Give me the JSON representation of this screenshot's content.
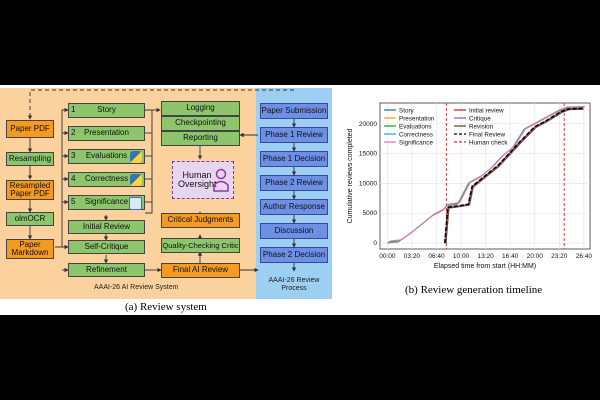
{
  "left_panel": {
    "pipeline": [
      "Paper PDF",
      "Resampling",
      "Resampled Paper PDF",
      "olmOCR",
      "Paper Markdown"
    ],
    "stages": [
      {
        "num": "1",
        "label": "Story"
      },
      {
        "num": "2",
        "label": "Presentation"
      },
      {
        "num": "3",
        "label": "Evaluations"
      },
      {
        "num": "4",
        "label": "Correctness"
      },
      {
        "num": "5",
        "label": "Significance"
      }
    ],
    "initial_review": "Initial Review",
    "self_critique": "Self-Critique",
    "refinement": "Refinement",
    "logging": "Logging",
    "checkpointing": "Checkpointing",
    "reporting": "Reporting",
    "human_oversight": "Human Oversight",
    "critical_judgments": "Critical Judgments",
    "quality_critic": "Quality-Checking Critic",
    "final_ai_review": "Final AI Review",
    "system_label": "AAAI-26 AI Review System",
    "process_title": "AAAI-26 Review Process",
    "process_steps": [
      "Paper Submission",
      "Phase 1 Review",
      "Phase 1 Decision",
      "Phase 2 Review",
      "Author Response",
      "Discussion",
      "Phase 2 Decision"
    ]
  },
  "captions": {
    "left": "(a) Review system",
    "right": "(b) Review generation timeline"
  },
  "chart_data": {
    "type": "line",
    "xlabel": "Elapsed time from start (HH:MM)",
    "ylabel": "Cumulative reviews completed",
    "x_ticks": [
      "00:00",
      "03:20",
      "06:40",
      "10:00",
      "13:20",
      "16:40",
      "20:00",
      "23:20",
      "26:40"
    ],
    "y_ticks": [
      "0",
      "5000",
      "10000",
      "15000",
      "20000"
    ],
    "xlim_hours": [
      -1,
      27.5
    ],
    "ylim": [
      -1000,
      23500
    ],
    "grid": true,
    "legend_placement": "top-left",
    "human_check_hours": [
      8.0,
      24.0
    ],
    "series": [
      {
        "name": "Story",
        "color": "#1f77b4",
        "style": "solid"
      },
      {
        "name": "Presentation",
        "color": "#ff9f1c",
        "style": "solid"
      },
      {
        "name": "Evaluations",
        "color": "#2ca02c",
        "style": "solid"
      },
      {
        "name": "Correctness",
        "color": "#3aa7e6",
        "style": "solid"
      },
      {
        "name": "Significance",
        "color": "#e377c2",
        "style": "solid"
      },
      {
        "name": "Initial review",
        "color": "#d62728",
        "style": "solid"
      },
      {
        "name": "Critique",
        "color": "#9467bd",
        "style": "solid"
      },
      {
        "name": "Revision",
        "color": "#6b4c3b",
        "style": "solid"
      },
      {
        "name": "Final Review",
        "color": "#000000",
        "style": "dashed"
      },
      {
        "name": "Human check",
        "color": "#d62728",
        "style": "dashed"
      }
    ],
    "early_curve": {
      "x": [
        0,
        1.5,
        3,
        4.5,
        6,
        7.5,
        8,
        9.5,
        11,
        12.5,
        14,
        15.5,
        17,
        18.5,
        20,
        21.5,
        23,
        24,
        26.5
      ],
      "y": [
        0,
        200,
        1500,
        3000,
        4500,
        5500,
        6200,
        6500,
        10000,
        11000,
        12500,
        14500,
        16000,
        19000,
        20000,
        21000,
        22000,
        22500,
        22600
      ]
    },
    "late_curve": {
      "x": [
        7.8,
        8.2,
        9.5,
        11,
        11.5,
        13.5,
        15,
        16.5,
        18,
        20,
        21.5,
        23.5,
        24.5,
        26.5
      ],
      "y": [
        0,
        6000,
        6200,
        6500,
        9500,
        11500,
        13000,
        15000,
        17000,
        19500,
        20500,
        22000,
        22500,
        22600
      ]
    }
  }
}
